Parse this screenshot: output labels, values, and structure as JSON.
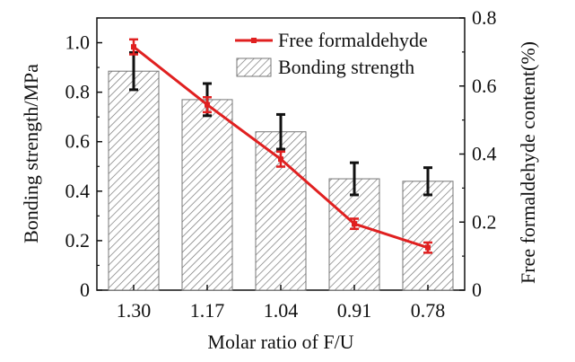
{
  "chart_data": {
    "type": "bar+line",
    "categories": [
      "1.30",
      "1.17",
      "1.04",
      "0.91",
      "0.78"
    ],
    "xlabel": "Molar ratio of F/U",
    "y_left": {
      "label": "Bonding strength/MPa",
      "ylim": [
        0,
        1.1
      ],
      "ticks": [
        0,
        0.2,
        0.4,
        0.6,
        0.8,
        1.0
      ],
      "tick_labels": [
        "0",
        "0.2",
        "0.4",
        "0.6",
        "0.8",
        "1.0"
      ]
    },
    "y_right": {
      "label": "Free formaldehyde content(%)",
      "ylim": [
        0,
        0.8
      ],
      "ticks": [
        0,
        0.2,
        0.4,
        0.6,
        0.8
      ],
      "tick_labels": [
        "0",
        "0.2",
        "0.4",
        "0.6",
        "0.8"
      ]
    },
    "series": [
      {
        "name": "Bonding strength",
        "kind": "bar",
        "axis": "left",
        "values": [
          0.885,
          0.77,
          0.64,
          0.45,
          0.44
        ],
        "errors": [
          0.075,
          0.065,
          0.07,
          0.065,
          0.055
        ],
        "error_color": "#111111",
        "fill_pattern": "hatch",
        "color": "#777777"
      },
      {
        "name": "Free formaldehyde",
        "kind": "line",
        "axis": "right",
        "values": [
          0.715,
          0.545,
          0.385,
          0.195,
          0.125
        ],
        "errors": [
          0.022,
          0.022,
          0.022,
          0.015,
          0.015
        ],
        "color": "#e02020"
      }
    ],
    "legend": {
      "position": "top-right",
      "items": [
        "Free formaldehyde",
        "Bonding strength"
      ]
    },
    "grid": false
  }
}
